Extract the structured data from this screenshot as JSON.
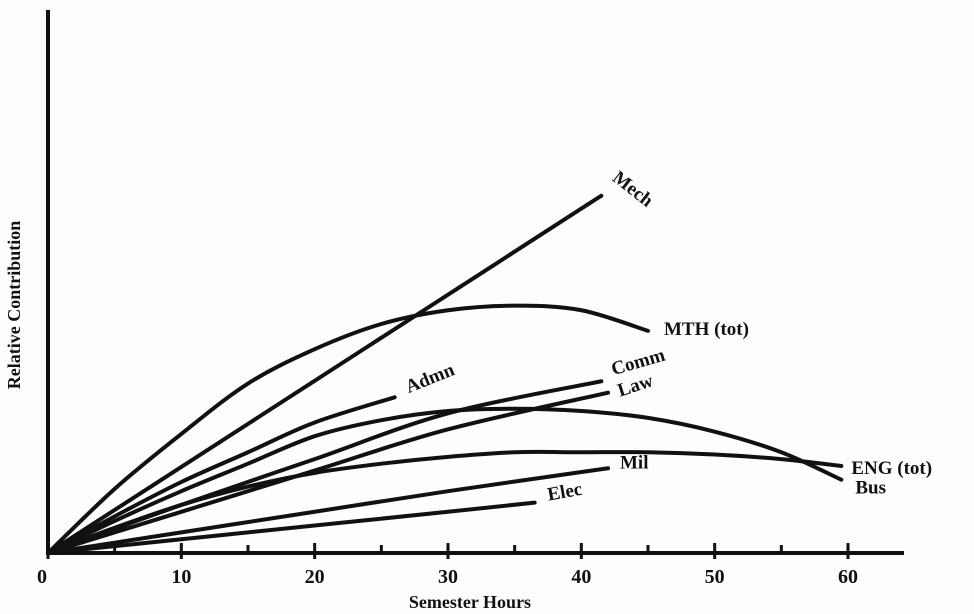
{
  "chart_data": {
    "type": "line",
    "title": "",
    "xlabel": "Semester Hours",
    "ylabel": "Relative Contribution",
    "xlim": [
      0,
      60
    ],
    "ylim": [
      0,
      10
    ],
    "y_tick_labels_shown": false,
    "x_ticks": [
      0,
      10,
      20,
      30,
      40,
      50,
      60
    ],
    "x_minor_ticks": [
      5,
      15,
      25,
      35,
      45,
      55
    ],
    "grid": false,
    "legend": "none (series labeled at line ends)",
    "series": [
      {
        "name": "Mech",
        "x": [
          0,
          10,
          20,
          30,
          40,
          41.5
        ],
        "y": [
          0,
          1.88,
          3.76,
          5.64,
          7.52,
          7.8
        ]
      },
      {
        "name": "MTH (tot)",
        "x": [
          0,
          5,
          10,
          15,
          20,
          25,
          30,
          35,
          40,
          45
        ],
        "y": [
          0,
          1.4,
          2.6,
          3.7,
          4.45,
          5.0,
          5.3,
          5.4,
          5.3,
          4.85
        ]
      },
      {
        "name": "Comm",
        "x": [
          0,
          10,
          20,
          30,
          41.5
        ],
        "y": [
          0,
          1.05,
          2.05,
          3.05,
          3.75
        ]
      },
      {
        "name": "Law",
        "x": [
          0,
          10,
          20,
          30,
          42
        ],
        "y": [
          0,
          0.9,
          1.8,
          2.7,
          3.5
        ]
      },
      {
        "name": "Admn",
        "x": [
          0,
          5,
          10,
          15,
          20,
          26
        ],
        "y": [
          0,
          0.8,
          1.55,
          2.2,
          2.85,
          3.4
        ]
      },
      {
        "name": "Bus",
        "x": [
          0,
          5,
          10,
          15,
          20,
          25,
          30,
          35,
          40,
          45,
          50,
          55,
          59.5
        ],
        "y": [
          0,
          0.7,
          1.35,
          1.95,
          2.55,
          2.9,
          3.1,
          3.15,
          3.1,
          2.95,
          2.65,
          2.2,
          1.6
        ]
      },
      {
        "name": "ENG (tot)",
        "x": [
          0,
          5,
          10,
          15,
          20,
          25,
          30,
          35,
          40,
          45,
          50,
          55,
          59.5
        ],
        "y": [
          0,
          0.55,
          1.05,
          1.45,
          1.75,
          1.95,
          2.1,
          2.2,
          2.2,
          2.2,
          2.15,
          2.05,
          1.9
        ]
      },
      {
        "name": "Mil",
        "x": [
          0,
          10,
          20,
          30,
          42
        ],
        "y": [
          0,
          0.45,
          0.9,
          1.35,
          1.85
        ]
      },
      {
        "name": "Elec",
        "x": [
          0,
          10,
          20,
          30,
          36.5
        ],
        "y": [
          0,
          0.3,
          0.6,
          0.9,
          1.1
        ]
      }
    ]
  }
}
